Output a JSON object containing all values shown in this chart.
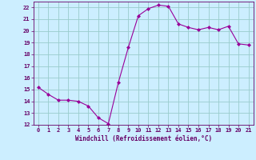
{
  "x": [
    0,
    1,
    2,
    3,
    4,
    5,
    6,
    7,
    8,
    9,
    10,
    11,
    12,
    13,
    14,
    15,
    16,
    17,
    18,
    19,
    20,
    21
  ],
  "y": [
    15.2,
    14.6,
    14.1,
    14.1,
    14.0,
    13.6,
    12.6,
    12.1,
    15.6,
    18.6,
    21.3,
    21.9,
    22.2,
    22.1,
    20.6,
    20.3,
    20.1,
    20.3,
    20.1,
    20.4,
    18.9,
    18.8
  ],
  "line_color": "#990099",
  "marker_color": "#990099",
  "bg_color": "#cceeff",
  "grid_color": "#99cccc",
  "xlabel": "Windchill (Refroidissement éolien,°C)",
  "xlabel_color": "#660066",
  "tick_color": "#660066",
  "ylim": [
    12,
    22.5
  ],
  "xlim": [
    -0.5,
    21.5
  ],
  "yticks": [
    12,
    13,
    14,
    15,
    16,
    17,
    18,
    19,
    20,
    21,
    22
  ],
  "xticks": [
    0,
    1,
    2,
    3,
    4,
    5,
    6,
    7,
    8,
    9,
    10,
    11,
    12,
    13,
    14,
    15,
    16,
    17,
    18,
    19,
    20,
    21
  ]
}
